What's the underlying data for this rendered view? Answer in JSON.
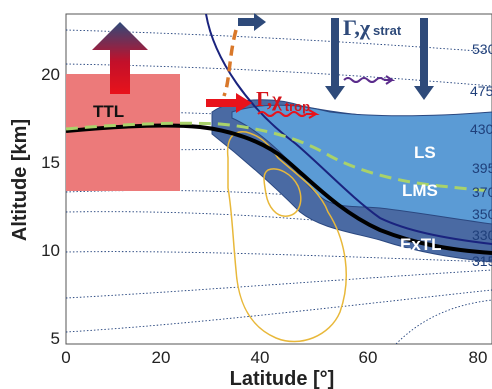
{
  "axes": {
    "xlabel": "Latitude [°]",
    "ylabel": "Altitude [km]",
    "x_ticks": [
      "0",
      "20",
      "40",
      "60",
      "80"
    ],
    "y_ticks": [
      "5",
      "10",
      "15",
      "20"
    ]
  },
  "labels": {
    "ttl": "TTL",
    "ls": "LS",
    "lms": "LMS",
    "extl": "ExTL",
    "gamma_strat": "Γ,χ",
    "gamma_strat_sub": "strat",
    "gamma_trop": "Γ,χ",
    "gamma_trop_sub": "trop"
  },
  "isentropes": [
    "530",
    "475",
    "430",
    "395",
    "370",
    "350",
    "330",
    "315"
  ],
  "colors": {
    "ttl_box": "#ec7a7a",
    "ls": "#5b9bd5",
    "extl": "#4a6aa3",
    "tropopause": "#000000",
    "dashed_tropopause": "#a9d26a",
    "jet_line": "#1a237e",
    "orange_dashed": "#d9782a",
    "yellow_contour": "#e8b83a",
    "red_arrow": "#e8131b",
    "navy_arrow": "#2e4a7a"
  }
}
